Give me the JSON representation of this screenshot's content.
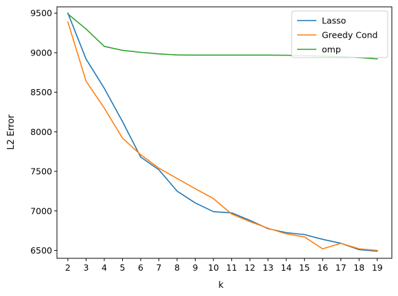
{
  "chart_data": {
    "type": "line",
    "title": "",
    "xlabel": "k",
    "ylabel": "L2 Error",
    "x": [
      2,
      3,
      4,
      5,
      6,
      7,
      8,
      9,
      10,
      11,
      12,
      13,
      14,
      15,
      16,
      17,
      18,
      19
    ],
    "xlim": [
      1.4,
      19.8
    ],
    "ylim": [
      6400,
      9580
    ],
    "yticks": [
      6500,
      7000,
      7500,
      8000,
      8500,
      9000,
      9500
    ],
    "grid": false,
    "legend_position": "top-right",
    "series": [
      {
        "name": "Lasso",
        "color": "#1f77b4",
        "values": [
          9500,
          8920,
          8550,
          8130,
          7680,
          7520,
          7250,
          7100,
          6990,
          6975,
          6880,
          6775,
          6725,
          6700,
          6640,
          6590,
          6510,
          6490
        ]
      },
      {
        "name": "Greedy Cond",
        "color": "#ff7f0e",
        "values": [
          9390,
          8640,
          8300,
          7920,
          7710,
          7540,
          7410,
          7280,
          7155,
          6960,
          6865,
          6780,
          6710,
          6670,
          6520,
          6590,
          6520,
          6500
        ]
      },
      {
        "name": "omp",
        "color": "#2ca02c",
        "values": [
          9490,
          9300,
          9080,
          9030,
          9005,
          8985,
          8972,
          8970,
          8970,
          8970,
          8970,
          8970,
          8968,
          8963,
          8957,
          8950,
          8938,
          8922
        ]
      }
    ]
  }
}
